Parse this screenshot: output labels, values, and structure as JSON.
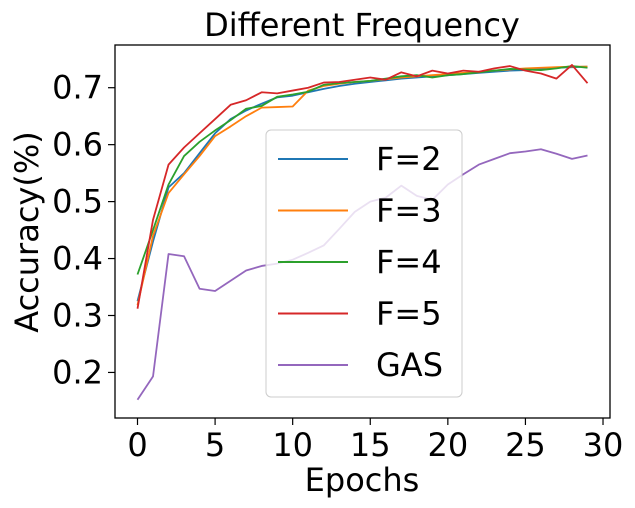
{
  "chart_data": {
    "type": "line",
    "title": "Different Frequency",
    "xlabel": "Epochs",
    "ylabel": "Accuracy(%)",
    "xlim": [
      -1.45,
      30.45
    ],
    "ylim": [
      0.12,
      0.775
    ],
    "xticks": [
      0,
      5,
      10,
      15,
      20,
      25,
      30
    ],
    "yticks": [
      0.2,
      0.3,
      0.4,
      0.5,
      0.6,
      0.7
    ],
    "xtick_labels": [
      "0",
      "5",
      "10",
      "15",
      "20",
      "25",
      "30"
    ],
    "ytick_labels": [
      "0.2",
      "0.3",
      "0.4",
      "0.5",
      "0.6",
      "0.7"
    ],
    "legend_position": "center",
    "grid": false,
    "x": [
      0,
      1,
      2,
      3,
      4,
      5,
      6,
      7,
      8,
      9,
      10,
      11,
      12,
      13,
      14,
      15,
      16,
      17,
      18,
      19,
      20,
      21,
      22,
      23,
      24,
      25,
      26,
      27,
      28,
      29
    ],
    "series": [
      {
        "name": "F=2",
        "color": "#1f77b4",
        "values": [
          0.325,
          0.43,
          0.525,
          0.55,
          0.585,
          0.62,
          0.645,
          0.66,
          0.672,
          0.683,
          0.686,
          0.692,
          0.698,
          0.703,
          0.707,
          0.71,
          0.713,
          0.716,
          0.718,
          0.72,
          0.722,
          0.724,
          0.726,
          0.728,
          0.73,
          0.731,
          0.733,
          0.735,
          0.736,
          0.737
        ]
      },
      {
        "name": "F=3",
        "color": "#ff7f0e",
        "values": [
          0.318,
          0.44,
          0.515,
          0.548,
          0.58,
          0.615,
          0.632,
          0.65,
          0.665,
          0.666,
          0.667,
          0.695,
          0.703,
          0.707,
          0.71,
          0.712,
          0.715,
          0.718,
          0.72,
          0.722,
          0.724,
          0.726,
          0.728,
          0.73,
          0.732,
          0.734,
          0.735,
          0.736,
          0.737,
          0.737
        ]
      },
      {
        "name": "F=4",
        "color": "#2ca02c",
        "values": [
          0.372,
          0.45,
          0.53,
          0.58,
          0.605,
          0.625,
          0.643,
          0.663,
          0.668,
          0.684,
          0.688,
          0.693,
          0.705,
          0.708,
          0.71,
          0.712,
          0.716,
          0.72,
          0.722,
          0.718,
          0.722,
          0.724,
          0.727,
          0.73,
          0.733,
          0.732,
          0.731,
          0.734,
          0.738,
          0.735
        ]
      },
      {
        "name": "F=5",
        "color": "#d62728",
        "values": [
          0.312,
          0.468,
          0.565,
          0.595,
          0.62,
          0.645,
          0.67,
          0.678,
          0.692,
          0.69,
          0.695,
          0.7,
          0.709,
          0.71,
          0.714,
          0.718,
          0.714,
          0.727,
          0.72,
          0.73,
          0.725,
          0.73,
          0.728,
          0.734,
          0.738,
          0.73,
          0.725,
          0.716,
          0.74,
          0.708
        ]
      },
      {
        "name": "GAS",
        "color": "#9467bd",
        "values": [
          0.152,
          0.193,
          0.408,
          0.404,
          0.347,
          0.343,
          0.361,
          0.379,
          0.387,
          0.391,
          0.398,
          0.41,
          0.423,
          0.452,
          0.482,
          0.5,
          0.507,
          0.528,
          0.51,
          0.503,
          0.53,
          0.548,
          0.565,
          0.575,
          0.585,
          0.588,
          0.592,
          0.584,
          0.575,
          0.581
        ]
      }
    ]
  }
}
